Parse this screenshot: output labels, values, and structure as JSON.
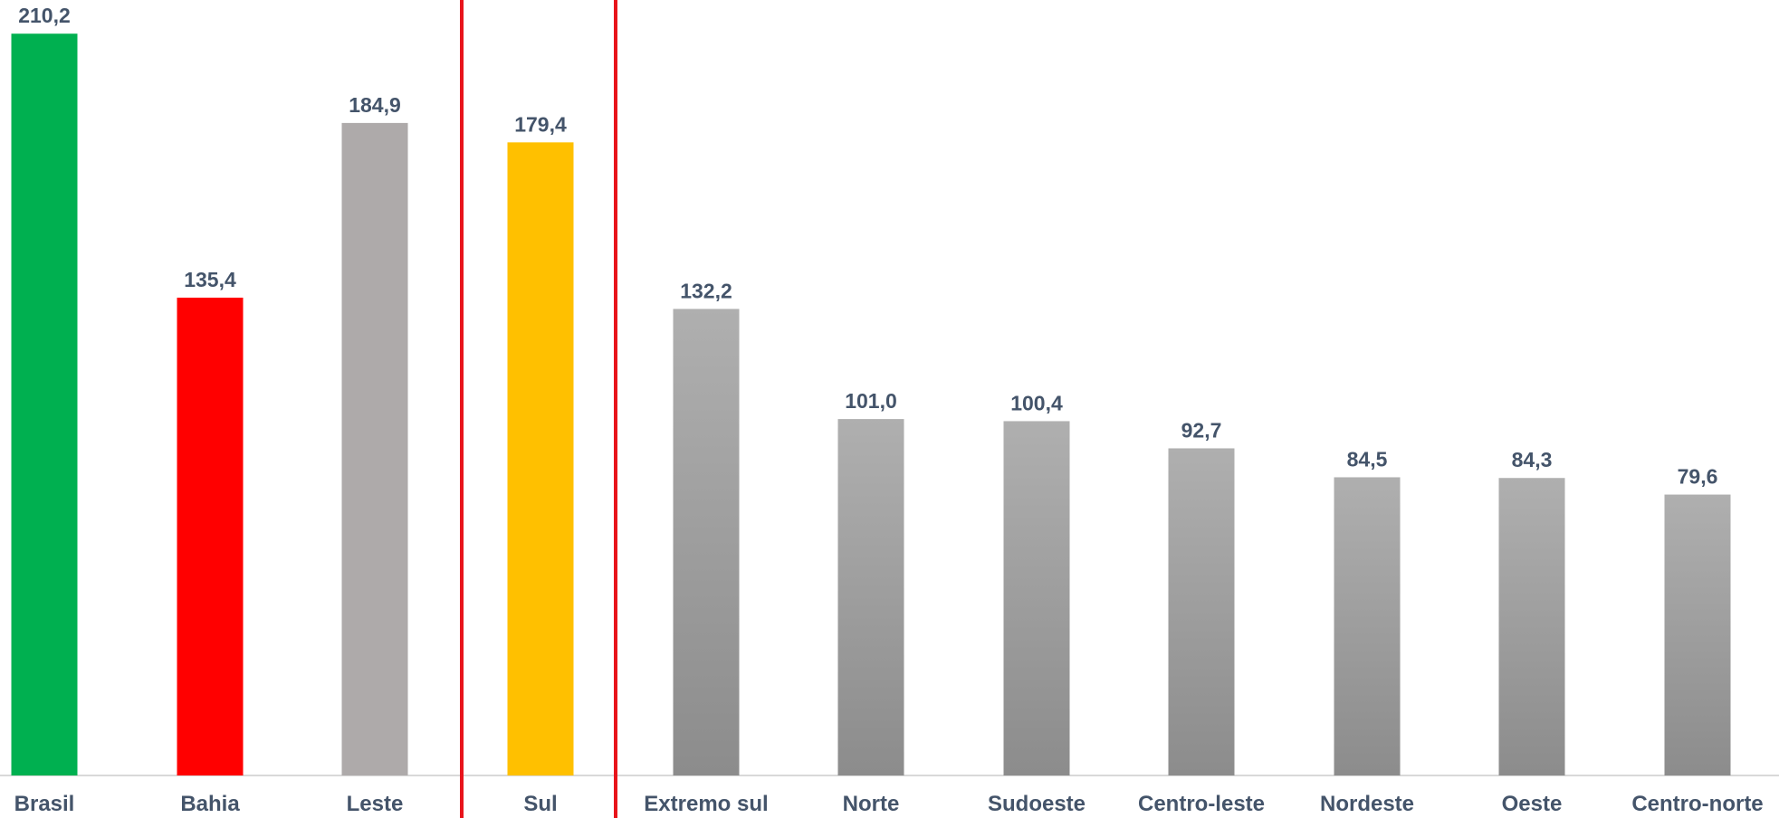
{
  "chart_data": {
    "type": "bar",
    "title": "",
    "xlabel": "",
    "ylabel": "",
    "ylim": [
      0,
      215
    ],
    "grid": false,
    "legend": "none",
    "categories": [
      "Brasil",
      "Bahia",
      "Leste",
      "Sul",
      "Extremo sul",
      "Norte",
      "Sudoeste",
      "Centro-leste",
      "Nordeste",
      "Oeste",
      "Centro-norte"
    ],
    "values": [
      210.2,
      135.4,
      184.9,
      179.4,
      132.2,
      101.0,
      100.4,
      92.7,
      84.5,
      84.3,
      79.6
    ],
    "value_labels": [
      "210,2",
      "135,4",
      "184,9",
      "179,4",
      "132,2",
      "101,0",
      "100,4",
      "92,7",
      "84,5",
      "84,3",
      "79,6"
    ],
    "bar_colors": [
      "#00b050",
      "#ff0000",
      "#aeaaaa",
      "#ffc000",
      "gray-gradient",
      "gray-gradient",
      "gray-gradient",
      "gray-gradient",
      "gray-gradient",
      "gray-gradient",
      "gray-gradient"
    ],
    "highlight_box_around": "Sul",
    "highlight_color": "#e8141b"
  }
}
